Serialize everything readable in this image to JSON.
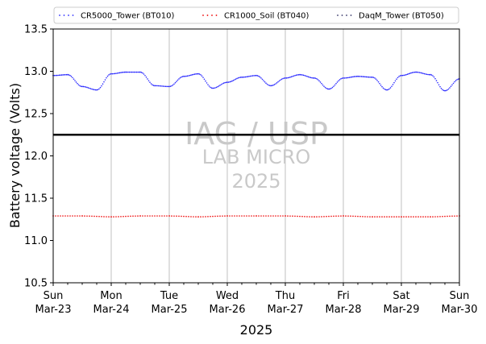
{
  "chart_data": {
    "type": "scatter",
    "ylabel": "Battery voltage (Volts)",
    "xlabel": "2025",
    "ylim": [
      10.5,
      13.5
    ],
    "yticks": [
      "10.5",
      "11.0",
      "11.5",
      "12.0",
      "12.5",
      "13.0",
      "13.5"
    ],
    "xrange_days": [
      0,
      7
    ],
    "xticks": [
      {
        "day": "Sun",
        "date": "Mar-23"
      },
      {
        "day": "Mon",
        "date": "Mar-24"
      },
      {
        "day": "Tue",
        "date": "Mar-25"
      },
      {
        "day": "Wed",
        "date": "Mar-26"
      },
      {
        "day": "Thu",
        "date": "Mar-27"
      },
      {
        "day": "Fri",
        "date": "Mar-28"
      },
      {
        "day": "Sat",
        "date": "Mar-29"
      },
      {
        "day": "Sun",
        "date": "Mar-30"
      }
    ],
    "grid": "vertical at major ticks",
    "legend_position": "top",
    "threshold_line": 12.25,
    "series": [
      {
        "name": "CR5000_Tower (BT010)",
        "color": "#2b2bff",
        "x": [
          "Mar-23 00:00",
          "Mar-23 06:00",
          "Mar-23 12:00",
          "Mar-23 18:00",
          "Mar-24 00:00",
          "Mar-24 06:00",
          "Mar-24 12:00",
          "Mar-24 18:00",
          "Mar-25 00:00",
          "Mar-25 06:00",
          "Mar-25 12:00",
          "Mar-25 18:00",
          "Mar-26 00:00",
          "Mar-26 06:00",
          "Mar-26 12:00",
          "Mar-26 18:00",
          "Mar-27 00:00",
          "Mar-27 06:00",
          "Mar-27 12:00",
          "Mar-27 18:00",
          "Mar-28 00:00",
          "Mar-28 06:00",
          "Mar-28 12:00",
          "Mar-28 18:00",
          "Mar-29 00:00",
          "Mar-29 06:00",
          "Mar-29 12:00",
          "Mar-29 18:00",
          "Mar-30 00:00"
        ],
        "values": [
          12.95,
          12.96,
          12.82,
          12.78,
          12.97,
          12.99,
          12.99,
          12.83,
          12.82,
          12.94,
          12.97,
          12.8,
          12.87,
          12.93,
          12.95,
          12.83,
          12.92,
          12.96,
          12.92,
          12.79,
          12.92,
          12.94,
          12.93,
          12.78,
          12.95,
          12.99,
          12.96,
          12.77,
          12.91
        ]
      },
      {
        "name": "CR1000_Soil (BT040)",
        "color": "#ee0000",
        "x": [
          "Mar-23 00:00",
          "Mar-23 12:00",
          "Mar-24 00:00",
          "Mar-24 12:00",
          "Mar-25 00:00",
          "Mar-25 12:00",
          "Mar-26 00:00",
          "Mar-26 12:00",
          "Mar-27 00:00",
          "Mar-27 12:00",
          "Mar-28 00:00",
          "Mar-28 12:00",
          "Mar-29 00:00",
          "Mar-29 12:00",
          "Mar-30 00:00"
        ],
        "values": [
          11.29,
          11.29,
          11.28,
          11.29,
          11.29,
          11.28,
          11.29,
          11.29,
          11.29,
          11.28,
          11.29,
          11.28,
          11.28,
          11.28,
          11.29
        ]
      },
      {
        "name": "DaqM_Tower (BT050)",
        "color": "#333366",
        "x": [],
        "values": []
      }
    ],
    "watermark": [
      "IAG / USP",
      "LAB MICRO",
      "2025"
    ]
  }
}
